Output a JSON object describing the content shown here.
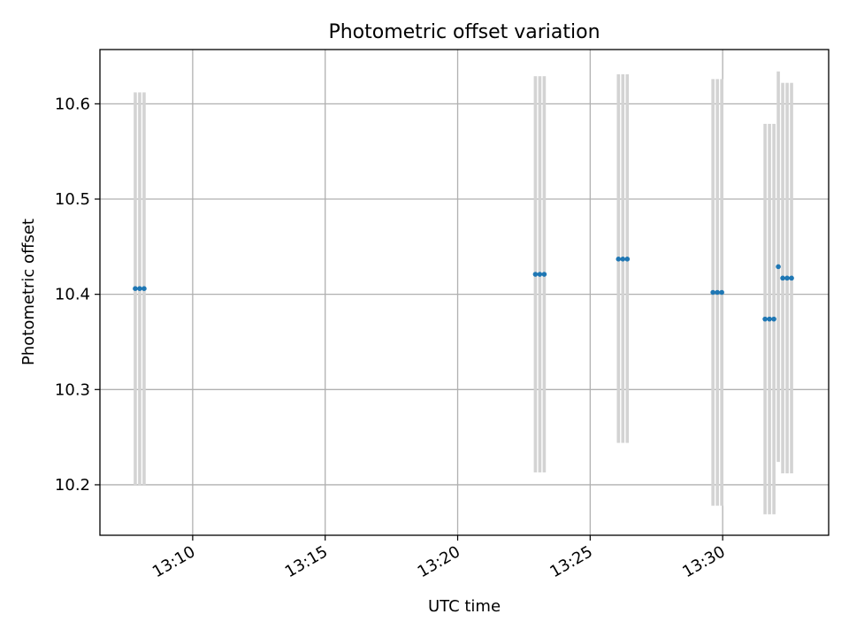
{
  "chart_data": {
    "type": "scatter",
    "title": "Photometric offset variation",
    "xlabel": "UTC time",
    "ylabel": "Photometric offset",
    "xlim": [
      "13:06:30",
      "13:34:00"
    ],
    "ylim": [
      10.147,
      10.657
    ],
    "grid": true,
    "x_ticks": [
      "13:10",
      "13:15",
      "13:20",
      "13:25",
      "13:30"
    ],
    "y_ticks": [
      "10.2",
      "10.3",
      "10.4",
      "10.5",
      "10.6"
    ],
    "colors": {
      "point": "#1f77b4",
      "errorbar": "#d3d3d3",
      "grid": "#b0b0b0"
    },
    "series": [
      {
        "points": [
          {
            "x": "13:07:50",
            "y": 10.406,
            "yerr_low": 10.199,
            "yerr_high": 10.612
          },
          {
            "x": "13:08:00",
            "y": 10.406,
            "yerr_low": 10.199,
            "yerr_high": 10.612
          },
          {
            "x": "13:08:10",
            "y": 10.406,
            "yerr_low": 10.199,
            "yerr_high": 10.612
          },
          {
            "x": "13:22:56",
            "y": 10.421,
            "yerr_low": 10.213,
            "yerr_high": 10.629
          },
          {
            "x": "13:23:06",
            "y": 10.421,
            "yerr_low": 10.213,
            "yerr_high": 10.629
          },
          {
            "x": "13:23:16",
            "y": 10.421,
            "yerr_low": 10.213,
            "yerr_high": 10.629
          },
          {
            "x": "13:26:04",
            "y": 10.437,
            "yerr_low": 10.244,
            "yerr_high": 10.631
          },
          {
            "x": "13:26:14",
            "y": 10.437,
            "yerr_low": 10.244,
            "yerr_high": 10.631
          },
          {
            "x": "13:26:24",
            "y": 10.437,
            "yerr_low": 10.244,
            "yerr_high": 10.631
          },
          {
            "x": "13:29:38",
            "y": 10.402,
            "yerr_low": 10.178,
            "yerr_high": 10.626
          },
          {
            "x": "13:29:48",
            "y": 10.402,
            "yerr_low": 10.178,
            "yerr_high": 10.626
          },
          {
            "x": "13:29:58",
            "y": 10.402,
            "yerr_low": 10.178,
            "yerr_high": 10.626
          },
          {
            "x": "13:31:36",
            "y": 10.374,
            "yerr_low": 10.169,
            "yerr_high": 10.579
          },
          {
            "x": "13:31:46",
            "y": 10.374,
            "yerr_low": 10.169,
            "yerr_high": 10.579
          },
          {
            "x": "13:31:56",
            "y": 10.374,
            "yerr_low": 10.169,
            "yerr_high": 10.579
          },
          {
            "x": "13:32:06",
            "y": 10.429,
            "yerr_low": 10.224,
            "yerr_high": 10.634
          },
          {
            "x": "13:32:16",
            "y": 10.417,
            "yerr_low": 10.212,
            "yerr_high": 10.622
          },
          {
            "x": "13:32:26",
            "y": 10.417,
            "yerr_low": 10.212,
            "yerr_high": 10.622
          },
          {
            "x": "13:32:36",
            "y": 10.417,
            "yerr_low": 10.212,
            "yerr_high": 10.622
          }
        ]
      }
    ]
  }
}
